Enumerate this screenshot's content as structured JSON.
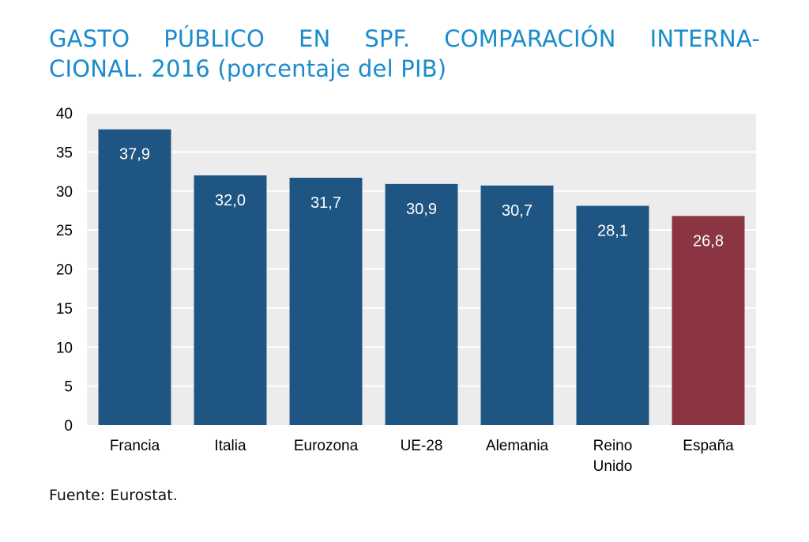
{
  "title_line1": "GASTO PÚBLICO EN SPF. COMPARACIÓN INTERNA-",
  "title_line2": "CIONAL. 2016 (porcentaje del PIB)",
  "source": "Fuente: Eurostat.",
  "colors": {
    "title": "#1a8ccc",
    "bar": "#1f5582",
    "highlight": "#8a3541",
    "plot_background": "#ececec",
    "gridline": "#ffffff"
  },
  "chart_data": {
    "type": "bar",
    "title": "GASTO PÚBLICO EN SPF. COMPARACIÓN INTERNACIONAL. 2016 (porcentaje del PIB)",
    "categories": [
      [
        "Francia"
      ],
      [
        "Italia"
      ],
      [
        "Eurozona"
      ],
      [
        "UE-28"
      ],
      [
        "Alemania"
      ],
      [
        "Reino",
        "Unido"
      ],
      [
        "España"
      ]
    ],
    "values": [
      37.9,
      32.0,
      31.7,
      30.9,
      30.7,
      28.1,
      26.8
    ],
    "data_labels": [
      "37,9",
      "32,0",
      "31,7",
      "30,9",
      "30,7",
      "28,1",
      "26,8"
    ],
    "highlight_index": 6,
    "ylim": [
      0,
      40
    ],
    "yticks": [
      0,
      5,
      10,
      15,
      20,
      25,
      30,
      35,
      40
    ],
    "grid": true,
    "legend": "none"
  }
}
